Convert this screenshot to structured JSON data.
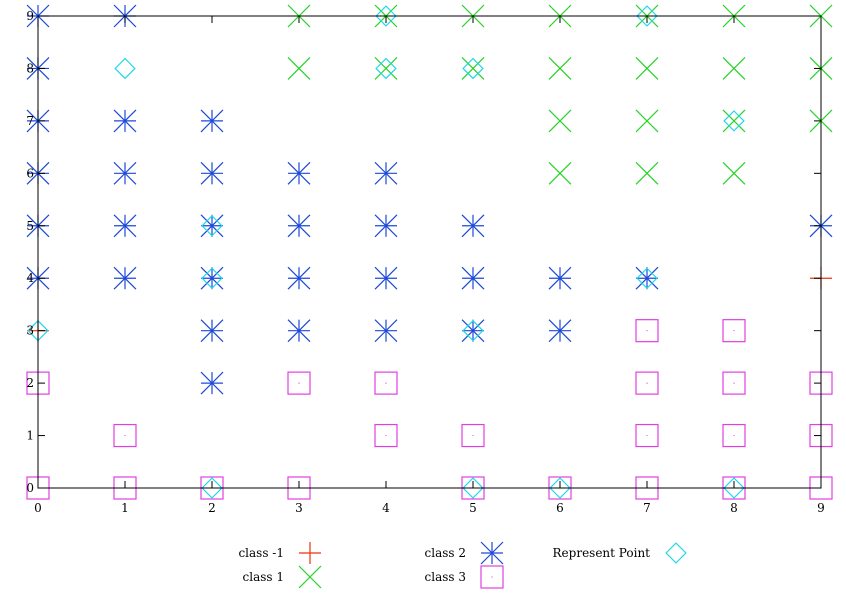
{
  "chart_data": {
    "type": "scatter",
    "title": "",
    "xlabel": "",
    "ylabel": "",
    "xlim": [
      0,
      9
    ],
    "ylim": [
      0,
      9
    ],
    "x_ticks": [
      0,
      1,
      2,
      3,
      4,
      5,
      6,
      7,
      8,
      9
    ],
    "y_ticks": [
      0,
      1,
      2,
      3,
      4,
      5,
      6,
      7,
      8,
      9
    ],
    "grid": false,
    "legend_position": "bottom",
    "series": [
      {
        "name": "class -1",
        "marker": "plus",
        "color": "#e8350b",
        "points": [
          [
            0,
            3
          ],
          [
            9,
            4
          ]
        ]
      },
      {
        "name": "class 1",
        "marker": "cross",
        "color": "#27d327",
        "points": [
          [
            3,
            9
          ],
          [
            4,
            9
          ],
          [
            5,
            9
          ],
          [
            6,
            9
          ],
          [
            7,
            9
          ],
          [
            8,
            9
          ],
          [
            9,
            9
          ],
          [
            3,
            8
          ],
          [
            4,
            8
          ],
          [
            5,
            8
          ],
          [
            6,
            8
          ],
          [
            7,
            8
          ],
          [
            8,
            8
          ],
          [
            9,
            8
          ],
          [
            6,
            7
          ],
          [
            7,
            7
          ],
          [
            8,
            7
          ],
          [
            9,
            7
          ],
          [
            6,
            6
          ],
          [
            7,
            6
          ],
          [
            8,
            6
          ]
        ]
      },
      {
        "name": "class 2",
        "marker": "star",
        "color": "#1c49d8",
        "points": [
          [
            0,
            9
          ],
          [
            1,
            9
          ],
          [
            0,
            8
          ],
          [
            0,
            7
          ],
          [
            1,
            7
          ],
          [
            2,
            7
          ],
          [
            0,
            6
          ],
          [
            1,
            6
          ],
          [
            2,
            6
          ],
          [
            3,
            6
          ],
          [
            4,
            6
          ],
          [
            0,
            5
          ],
          [
            1,
            5
          ],
          [
            2,
            5
          ],
          [
            3,
            5
          ],
          [
            4,
            5
          ],
          [
            5,
            5
          ],
          [
            9,
            5
          ],
          [
            0,
            4
          ],
          [
            1,
            4
          ],
          [
            2,
            4
          ],
          [
            3,
            4
          ],
          [
            4,
            4
          ],
          [
            5,
            4
          ],
          [
            6,
            4
          ],
          [
            7,
            4
          ],
          [
            2,
            3
          ],
          [
            3,
            3
          ],
          [
            4,
            3
          ],
          [
            5,
            3
          ],
          [
            6,
            3
          ],
          [
            2,
            2
          ]
        ]
      },
      {
        "name": "class 3",
        "marker": "square",
        "color": "#e040e0",
        "points": [
          [
            7,
            3
          ],
          [
            8,
            3
          ],
          [
            0,
            2
          ],
          [
            3,
            2
          ],
          [
            4,
            2
          ],
          [
            7,
            2
          ],
          [
            8,
            2
          ],
          [
            9,
            2
          ],
          [
            1,
            1
          ],
          [
            4,
            1
          ],
          [
            5,
            1
          ],
          [
            7,
            1
          ],
          [
            8,
            1
          ],
          [
            9,
            1
          ],
          [
            0,
            0
          ],
          [
            1,
            0
          ],
          [
            2,
            0
          ],
          [
            3,
            0
          ],
          [
            5,
            0
          ],
          [
            6,
            0
          ],
          [
            7,
            0
          ],
          [
            8,
            0
          ],
          [
            9,
            0
          ]
        ]
      },
      {
        "name": "Represent Point",
        "marker": "diamond",
        "color": "#22d8e8",
        "points": [
          [
            4,
            9
          ],
          [
            7,
            9
          ],
          [
            1,
            8
          ],
          [
            4,
            8
          ],
          [
            5,
            8
          ],
          [
            8,
            7
          ],
          [
            2,
            5
          ],
          [
            2,
            4
          ],
          [
            7,
            4
          ],
          [
            0,
            3
          ],
          [
            5,
            3
          ],
          [
            2,
            0
          ],
          [
            5,
            0
          ],
          [
            6,
            0
          ],
          [
            8,
            0
          ]
        ]
      }
    ]
  }
}
